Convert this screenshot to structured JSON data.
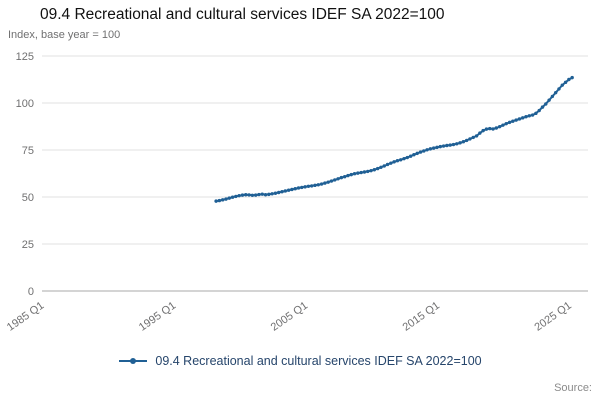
{
  "header": {
    "title": "09.4 Recreational and cultural services IDEF SA 2022=100",
    "subtitle": "Index, base year = 100"
  },
  "legend": {
    "label": "09.4 Recreational and cultural services IDEF SA 2022=100"
  },
  "footer": {
    "source": "Source:"
  },
  "chart_data": {
    "type": "line",
    "title": "09.4 Recreational and cultural services IDEF SA 2022=100",
    "xlabel": "",
    "ylabel": "Index, base year = 100",
    "x_unit": "quarter (decimal year)",
    "x_start": 1998.0,
    "x_step": 0.25,
    "values": [
      47.8,
      48.1,
      48.5,
      48.9,
      49.4,
      49.9,
      50.3,
      50.7,
      51.0,
      51.2,
      51.1,
      50.9,
      51.0,
      51.3,
      51.5,
      51.2,
      51.4,
      51.7,
      52.0,
      52.4,
      52.8,
      53.2,
      53.6,
      54.0,
      54.4,
      54.8,
      55.1,
      55.4,
      55.7,
      55.9,
      56.2,
      56.5,
      56.9,
      57.4,
      57.9,
      58.5,
      59.1,
      59.7,
      60.3,
      60.8,
      61.4,
      61.9,
      62.4,
      62.7,
      63.0,
      63.3,
      63.6,
      64.0,
      64.5,
      65.1,
      65.8,
      66.5,
      67.3,
      68.0,
      68.7,
      69.3,
      69.8,
      70.4,
      71.0,
      71.7,
      72.5,
      73.2,
      73.9,
      74.5,
      75.1,
      75.6,
      76.0,
      76.4,
      76.8,
      77.1,
      77.4,
      77.6,
      77.9,
      78.3,
      78.8,
      79.4,
      80.1,
      80.9,
      81.7,
      82.5,
      84.0,
      85.3,
      86.1,
      86.4,
      86.2,
      86.7,
      87.4,
      88.2,
      89.0,
      89.7,
      90.3,
      90.9,
      91.5,
      92.1,
      92.7,
      93.2,
      93.6,
      94.5,
      96.0,
      97.8,
      99.5,
      101.5,
      103.5,
      105.5,
      107.5,
      109.5,
      111.0,
      112.5,
      113.5
    ],
    "x_ticks": [
      {
        "v": 1985,
        "label": "1985 Q1"
      },
      {
        "v": 1995,
        "label": "1995 Q1"
      },
      {
        "v": 2005,
        "label": "2005 Q1"
      },
      {
        "v": 2015,
        "label": "2015 Q1"
      },
      {
        "v": 2025,
        "label": "2025 Q1"
      }
    ],
    "y_ticks": [
      0,
      25,
      50,
      75,
      100,
      125
    ],
    "xlim": [
      1984.8,
      2026.2
    ],
    "ylim": [
      0,
      125
    ],
    "grid": "horizontal",
    "markers": true,
    "legend_position": "bottom",
    "colors": {
      "line": "#206095",
      "grid": "#e2e2e2",
      "axis": "#a8a8a8",
      "tick_text": "#707071"
    }
  }
}
